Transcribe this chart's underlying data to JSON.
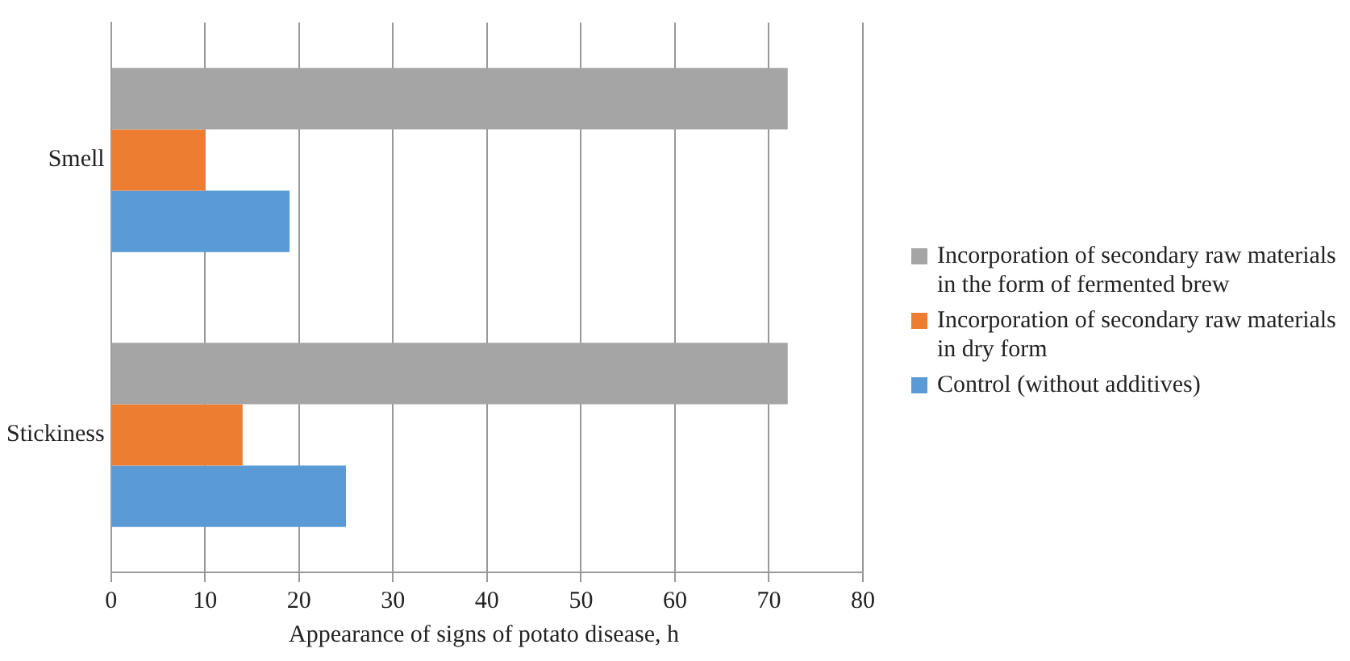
{
  "chart_data": {
    "type": "bar",
    "orientation": "horizontal",
    "xlabel": "Appearance of signs of potato disease, h",
    "categories": [
      "Smell",
      "Stickiness"
    ],
    "series": [
      {
        "name": "Incorporation of secondary raw materials in the form of fermented brew",
        "color": "#a5a5a5",
        "values": [
          72,
          72
        ]
      },
      {
        "name": "Incorporation of secondary raw materials in dry form",
        "color": "#ed7d31",
        "values": [
          10,
          14
        ]
      },
      {
        "name": "Control (without additives)",
        "color": "#5b9bd5",
        "values": [
          19,
          25
        ]
      }
    ],
    "xlim": [
      0,
      80
    ],
    "xticks": [
      0,
      10,
      20,
      30,
      40,
      50,
      60,
      70,
      80
    ],
    "grid": "x",
    "legend": "right"
  }
}
